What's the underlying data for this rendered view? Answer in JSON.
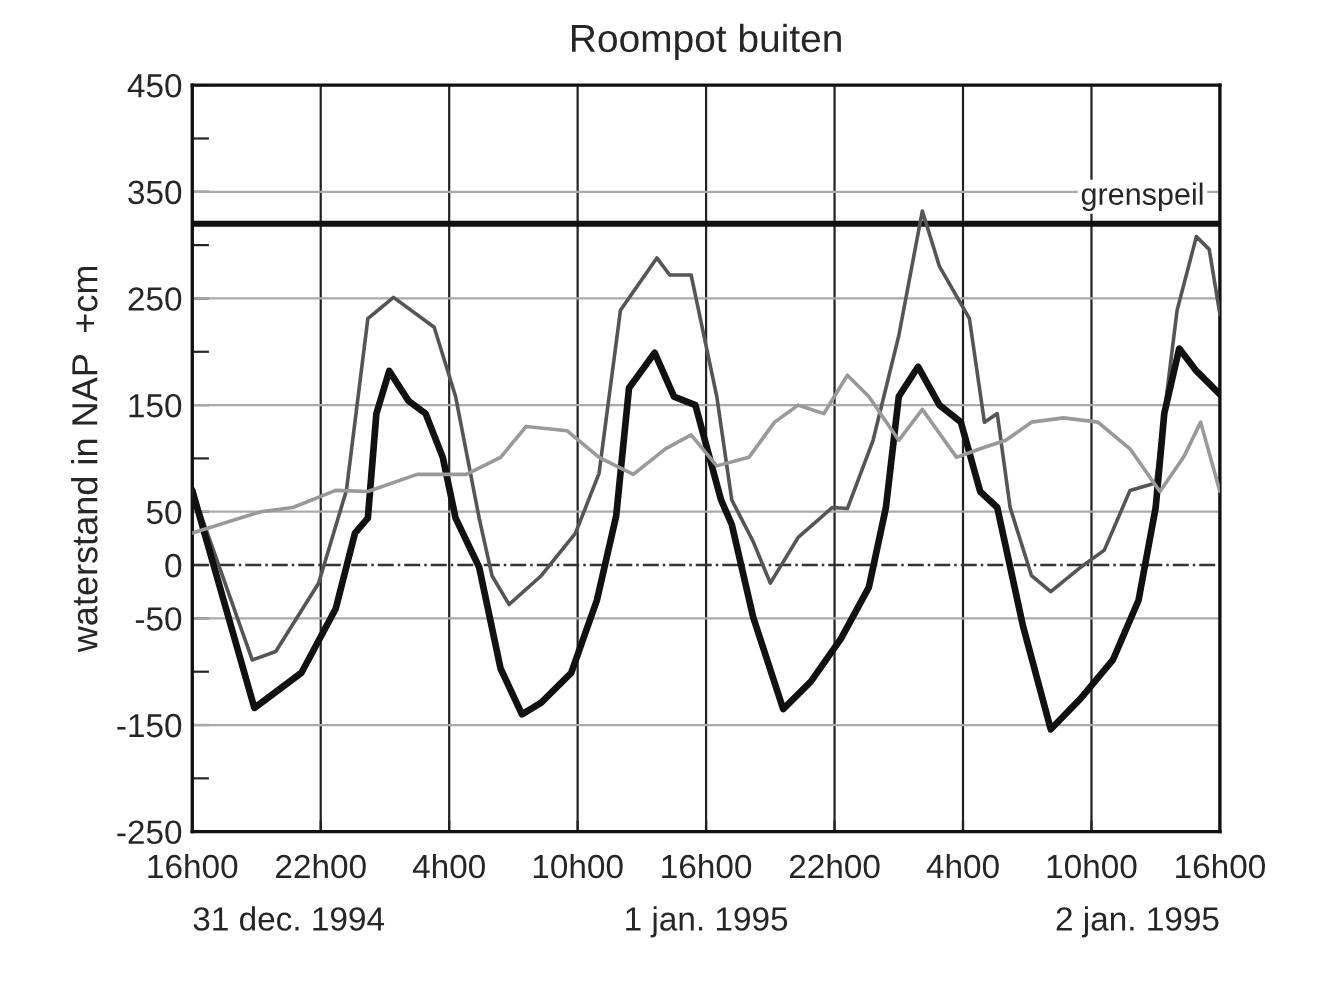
{
  "chart_data": {
    "type": "line",
    "title": "Roompot buiten",
    "ylabel": "waterstand in NAP  +cm",
    "xlim": [
      "1994-12-31T16:00",
      "1995-01-02T16:00"
    ],
    "xticks": [
      {
        "value": "1994-12-31T16:00",
        "label": "16h00"
      },
      {
        "value": "1994-12-31T22:00",
        "label": "22h00"
      },
      {
        "value": "1995-01-01T04:00",
        "label": "4h00"
      },
      {
        "value": "1995-01-01T10:00",
        "label": "10h00"
      },
      {
        "value": "1995-01-01T16:00",
        "label": "16h00"
      },
      {
        "value": "1995-01-01T22:00",
        "label": "22h00"
      },
      {
        "value": "1995-01-02T04:00",
        "label": "4h00"
      },
      {
        "value": "1995-01-02T10:00",
        "label": "10h00"
      },
      {
        "value": "1995-01-02T16:00",
        "label": "16h00"
      }
    ],
    "ylim": [
      -250,
      450
    ],
    "yticks": [
      -250,
      {
        "value": -200,
        "label": null
      },
      -150,
      {
        "value": -100,
        "label": null
      },
      -50,
      0,
      50,
      {
        "value": 100,
        "label": null
      },
      150,
      {
        "value": 200,
        "label": null
      },
      250,
      {
        "value": 300,
        "label": null
      },
      350,
      {
        "value": 400,
        "label": null
      },
      450
    ],
    "grid": true,
    "marker": "none",
    "line_style": "solid",
    "series": [
      {
        "color": "#555555",
        "x": [
          "1994-12-31T16:00",
          "1994-12-31T18:48",
          "1994-12-31T19:54",
          "1994-12-31T21:54",
          "1994-12-31T23:12",
          "1995-01-01T00:12",
          "1995-01-01T01:24",
          "1995-01-01T03:18",
          "1995-01-01T04:18",
          "1995-01-01T05:24",
          "1995-01-01T06:00",
          "1995-01-01T06:48",
          "1995-01-01T08:18",
          "1995-01-01T09:54",
          "1995-01-01T11:00",
          "1995-01-01T12:00",
          "1995-01-01T13:42",
          "1995-01-01T14:18",
          "1995-01-01T15:18",
          "1995-01-01T16:30",
          "1995-01-01T17:12",
          "1995-01-01T18:12",
          "1995-01-01T19:00",
          "1995-01-01T20:18",
          "1995-01-01T21:54",
          "1995-01-01T22:36",
          "1995-01-01T23:48",
          "1995-01-02T01:00",
          "1995-01-02T02:06",
          "1995-01-02T02:54",
          "1995-01-02T04:18",
          "1995-01-02T05:00",
          "1995-01-02T05:36",
          "1995-01-02T06:12",
          "1995-01-02T07:12",
          "1995-01-02T08:06",
          "1995-01-02T09:30",
          "1995-01-02T10:36",
          "1995-01-02T11:48",
          "1995-01-02T13:00",
          "1995-01-02T14:00",
          "1995-01-02T14:54",
          "1995-01-02T15:30",
          "1995-01-02T16:00"
        ],
        "values": [
          70,
          -89,
          -81,
          -17,
          70,
          231,
          251,
          223,
          158,
          44,
          -10,
          -37,
          -10,
          30,
          86,
          239,
          288,
          272,
          272,
          158,
          61,
          22,
          -17,
          26,
          54,
          53,
          117,
          215,
          332,
          280,
          231,
          134,
          142,
          54,
          -10,
          -25,
          -2,
          14,
          70,
          77,
          239,
          308,
          296,
          235
        ]
      },
      {
        "color": "#111111",
        "x": [
          "1994-12-31T16:00",
          "1994-12-31T18:54",
          "1994-12-31T21:06",
          "1994-12-31T22:42",
          "1994-12-31T23:36",
          "1995-01-01T00:12",
          "1995-01-01T00:36",
          "1995-01-01T01:12",
          "1995-01-01T02:06",
          "1995-01-01T02:54",
          "1995-01-01T03:42",
          "1995-01-01T04:18",
          "1995-01-01T05:24",
          "1995-01-01T06:24",
          "1995-01-01T07:24",
          "1995-01-01T08:18",
          "1995-01-01T09:42",
          "1995-01-01T10:54",
          "1995-01-01T11:48",
          "1995-01-01T12:24",
          "1995-01-01T13:36",
          "1995-01-01T14:30",
          "1995-01-01T15:30",
          "1995-01-01T16:42",
          "1995-01-01T17:12",
          "1995-01-01T18:12",
          "1995-01-01T19:36",
          "1995-01-01T20:54",
          "1995-01-01T22:18",
          "1995-01-01T23:36",
          "1995-01-02T00:24",
          "1995-01-02T01:00",
          "1995-01-02T01:54",
          "1995-01-02T02:54",
          "1995-01-02T03:54",
          "1995-01-02T04:48",
          "1995-01-02T05:36",
          "1995-01-02T06:48",
          "1995-01-02T08:06",
          "1995-01-02T09:30",
          "1995-01-02T11:00",
          "1995-01-02T12:12",
          "1995-01-02T13:00",
          "1995-01-02T13:24",
          "1995-01-02T14:06",
          "1995-01-02T14:54",
          "1995-01-02T16:00"
        ],
        "values": [
          70,
          -134,
          -101,
          -41,
          30,
          44,
          142,
          182,
          154,
          142,
          101,
          44,
          -2,
          -97,
          -140,
          -129,
          -101,
          -33,
          46,
          166,
          199,
          158,
          150,
          61,
          38,
          -49,
          -135,
          -109,
          -69,
          -21,
          54,
          158,
          186,
          150,
          134,
          69,
          54,
          -57,
          -154,
          -125,
          -89,
          -33,
          54,
          142,
          203,
          182,
          160
        ]
      },
      {
        "color": "#999999",
        "x": [
          "1994-12-31T16:00",
          "1994-12-31T19:12",
          "1994-12-31T20:42",
          "1994-12-31T22:42",
          "1995-01-01T00:12",
          "1995-01-01T02:30",
          "1995-01-01T04:48",
          "1995-01-01T06:24",
          "1995-01-01T07:36",
          "1995-01-01T09:30",
          "1995-01-01T11:00",
          "1995-01-01T12:36",
          "1995-01-01T14:06",
          "1995-01-01T15:18",
          "1995-01-01T16:30",
          "1995-01-01T18:00",
          "1995-01-01T19:12",
          "1995-01-01T20:18",
          "1995-01-01T21:30",
          "1995-01-01T22:36",
          "1995-01-01T23:36",
          "1995-01-02T01:00",
          "1995-01-02T02:06",
          "1995-01-02T03:42",
          "1995-01-02T04:48",
          "1995-01-02T06:00",
          "1995-01-02T07:12",
          "1995-01-02T08:42",
          "1995-01-02T10:18",
          "1995-01-02T11:48",
          "1995-01-02T13:12",
          "1995-01-02T14:18",
          "1995-01-02T15:06",
          "1995-01-02T16:00"
        ],
        "values": [
          30,
          50,
          54,
          70,
          69,
          85,
          85,
          101,
          130,
          126,
          101,
          85,
          109,
          122,
          93,
          101,
          134,
          150,
          142,
          178,
          158,
          117,
          146,
          101,
          109,
          117,
          134,
          138,
          134,
          109,
          69,
          101,
          134,
          69
        ]
      }
    ],
    "ref_lines": [
      {
        "axis": "y",
        "value": 320,
        "label": "grenspeil",
        "color": "#111111",
        "line_style": "solid"
      },
      {
        "axis": "y",
        "value": 0,
        "color": "#333333",
        "line_style": "dashdot"
      }
    ],
    "annotations": [
      "31 dec. 1994",
      "1 jan. 1995",
      "2 jan. 1995"
    ]
  }
}
